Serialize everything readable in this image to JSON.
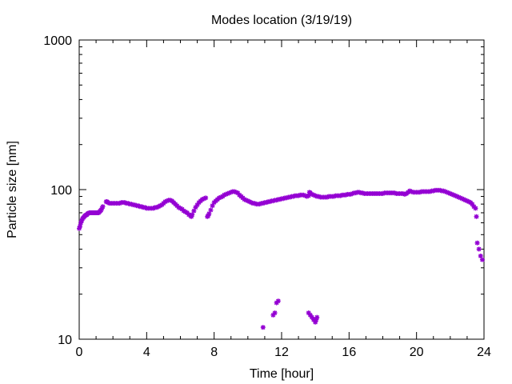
{
  "chart_data": {
    "type": "scatter",
    "title": "Modes location (3/19/19)",
    "xlabel": "Time [hour]",
    "ylabel": "Particle size [nm]",
    "xlim": [
      0,
      24
    ],
    "ylim": [
      10,
      1000
    ],
    "yscale": "log",
    "xticks": [
      0,
      4,
      8,
      12,
      16,
      20,
      24
    ],
    "yticks": [
      10,
      100,
      1000
    ],
    "grid": false,
    "marker_color": "#9400d3",
    "series": [
      {
        "points": [
          [
            0.0,
            55
          ],
          [
            0.05,
            57
          ],
          [
            0.1,
            60
          ],
          [
            0.15,
            62
          ],
          [
            0.2,
            64
          ],
          [
            0.25,
            65
          ],
          [
            0.3,
            66
          ],
          [
            0.35,
            67
          ],
          [
            0.4,
            67.5
          ],
          [
            0.45,
            68
          ],
          [
            0.5,
            69
          ],
          [
            0.55,
            69.5
          ],
          [
            0.6,
            70
          ],
          [
            0.65,
            70
          ],
          [
            0.7,
            70
          ],
          [
            0.75,
            70
          ],
          [
            0.8,
            70
          ],
          [
            0.85,
            70
          ],
          [
            0.9,
            70
          ],
          [
            0.95,
            70
          ],
          [
            1.0,
            70
          ],
          [
            1.05,
            70
          ],
          [
            1.1,
            70
          ],
          [
            1.15,
            70
          ],
          [
            1.2,
            71
          ],
          [
            1.25,
            72
          ],
          [
            1.3,
            73
          ],
          [
            1.35,
            75
          ],
          [
            1.4,
            77
          ],
          [
            1.6,
            83
          ],
          [
            1.65,
            83
          ],
          [
            1.7,
            82
          ],
          [
            1.8,
            81
          ],
          [
            1.9,
            81
          ],
          [
            2.0,
            81
          ],
          [
            2.1,
            81
          ],
          [
            2.2,
            81
          ],
          [
            2.3,
            81
          ],
          [
            2.4,
            81
          ],
          [
            2.5,
            82
          ],
          [
            2.6,
            82
          ],
          [
            2.7,
            82
          ],
          [
            2.8,
            81
          ],
          [
            2.9,
            81
          ],
          [
            3.0,
            80
          ],
          [
            3.1,
            80
          ],
          [
            3.2,
            79
          ],
          [
            3.3,
            79
          ],
          [
            3.4,
            78
          ],
          [
            3.5,
            78
          ],
          [
            3.6,
            77
          ],
          [
            3.7,
            77
          ],
          [
            3.8,
            76
          ],
          [
            3.9,
            76
          ],
          [
            4.0,
            75
          ],
          [
            4.1,
            75
          ],
          [
            4.2,
            75
          ],
          [
            4.3,
            75
          ],
          [
            4.4,
            75
          ],
          [
            4.5,
            76
          ],
          [
            4.6,
            76
          ],
          [
            4.7,
            77
          ],
          [
            4.8,
            78
          ],
          [
            4.9,
            79
          ],
          [
            5.0,
            81
          ],
          [
            5.1,
            83
          ],
          [
            5.2,
            84
          ],
          [
            5.3,
            85
          ],
          [
            5.4,
            85
          ],
          [
            5.5,
            84
          ],
          [
            5.6,
            82
          ],
          [
            5.7,
            80
          ],
          [
            5.8,
            78
          ],
          [
            5.9,
            76
          ],
          [
            6.0,
            75
          ],
          [
            6.1,
            74
          ],
          [
            6.2,
            72
          ],
          [
            6.3,
            71
          ],
          [
            6.4,
            70
          ],
          [
            6.5,
            68
          ],
          [
            6.6,
            67
          ],
          [
            6.65,
            66
          ],
          [
            6.7,
            68
          ],
          [
            6.8,
            72
          ],
          [
            6.9,
            76
          ],
          [
            7.0,
            79
          ],
          [
            7.1,
            82
          ],
          [
            7.2,
            84
          ],
          [
            7.3,
            86
          ],
          [
            7.4,
            87
          ],
          [
            7.5,
            88
          ],
          [
            7.6,
            66
          ],
          [
            7.65,
            67
          ],
          [
            7.7,
            69
          ],
          [
            7.8,
            73
          ],
          [
            7.9,
            78
          ],
          [
            8.0,
            82
          ],
          [
            8.1,
            84
          ],
          [
            8.2,
            86
          ],
          [
            8.3,
            88
          ],
          [
            8.4,
            89
          ],
          [
            8.5,
            90
          ],
          [
            8.6,
            92
          ],
          [
            8.7,
            93
          ],
          [
            8.8,
            94
          ],
          [
            8.9,
            95
          ],
          [
            9.0,
            96
          ],
          [
            9.1,
            97
          ],
          [
            9.2,
            97
          ],
          [
            9.3,
            96
          ],
          [
            9.4,
            95
          ],
          [
            9.5,
            92
          ],
          [
            9.6,
            90
          ],
          [
            9.7,
            88
          ],
          [
            9.8,
            86
          ],
          [
            9.9,
            85
          ],
          [
            10.0,
            84
          ],
          [
            10.1,
            83
          ],
          [
            10.2,
            82
          ],
          [
            10.3,
            81
          ],
          [
            10.4,
            81
          ],
          [
            10.5,
            80
          ],
          [
            10.6,
            80
          ],
          [
            10.7,
            80
          ],
          [
            10.8,
            81
          ],
          [
            10.9,
            81
          ],
          [
            11.0,
            82
          ],
          [
            11.1,
            82
          ],
          [
            11.2,
            83
          ],
          [
            11.3,
            83
          ],
          [
            11.4,
            84
          ],
          [
            11.5,
            84
          ],
          [
            11.6,
            85
          ],
          [
            11.7,
            85
          ],
          [
            11.8,
            86
          ],
          [
            11.9,
            86
          ],
          [
            12.0,
            87
          ],
          [
            12.1,
            87
          ],
          [
            12.2,
            88
          ],
          [
            12.3,
            88
          ],
          [
            12.4,
            89
          ],
          [
            12.5,
            89
          ],
          [
            12.6,
            90
          ],
          [
            12.7,
            90
          ],
          [
            12.8,
            91
          ],
          [
            12.9,
            91
          ],
          [
            13.0,
            91
          ],
          [
            13.1,
            92
          ],
          [
            13.2,
            92
          ],
          [
            13.3,
            92
          ],
          [
            13.4,
            91
          ],
          [
            13.5,
            90
          ],
          [
            13.6,
            91
          ],
          [
            13.65,
            96
          ],
          [
            13.7,
            95
          ],
          [
            13.8,
            93
          ],
          [
            13.9,
            92
          ],
          [
            14.0,
            91
          ],
          [
            14.1,
            90
          ],
          [
            14.2,
            90
          ],
          [
            14.3,
            89
          ],
          [
            14.4,
            89
          ],
          [
            14.5,
            89
          ],
          [
            14.6,
            89
          ],
          [
            14.7,
            89
          ],
          [
            14.8,
            90
          ],
          [
            14.9,
            90
          ],
          [
            15.0,
            90
          ],
          [
            15.1,
            90
          ],
          [
            15.2,
            91
          ],
          [
            15.3,
            91
          ],
          [
            15.4,
            91
          ],
          [
            15.5,
            91
          ],
          [
            15.6,
            92
          ],
          [
            15.7,
            92
          ],
          [
            15.8,
            92
          ],
          [
            15.9,
            93
          ],
          [
            16.0,
            93
          ],
          [
            16.1,
            93
          ],
          [
            16.2,
            94
          ],
          [
            16.3,
            95
          ],
          [
            16.4,
            95
          ],
          [
            16.5,
            96
          ],
          [
            16.6,
            96
          ],
          [
            16.7,
            95
          ],
          [
            16.8,
            95
          ],
          [
            16.9,
            94
          ],
          [
            17.0,
            94
          ],
          [
            17.1,
            94
          ],
          [
            17.2,
            94
          ],
          [
            17.3,
            94
          ],
          [
            17.4,
            94
          ],
          [
            17.5,
            94
          ],
          [
            17.6,
            94
          ],
          [
            17.7,
            94
          ],
          [
            17.8,
            94
          ],
          [
            17.9,
            94
          ],
          [
            18.0,
            94
          ],
          [
            18.1,
            95
          ],
          [
            18.2,
            95
          ],
          [
            18.3,
            95
          ],
          [
            18.4,
            95
          ],
          [
            18.5,
            95
          ],
          [
            18.6,
            95
          ],
          [
            18.7,
            95
          ],
          [
            18.8,
            94
          ],
          [
            18.9,
            94
          ],
          [
            19.0,
            94
          ],
          [
            19.1,
            94
          ],
          [
            19.2,
            94
          ],
          [
            19.3,
            93
          ],
          [
            19.4,
            94
          ],
          [
            19.5,
            96
          ],
          [
            19.6,
            98
          ],
          [
            19.7,
            97
          ],
          [
            19.8,
            96
          ],
          [
            19.9,
            96
          ],
          [
            20.0,
            96
          ],
          [
            20.1,
            96
          ],
          [
            20.2,
            96
          ],
          [
            20.3,
            97
          ],
          [
            20.4,
            97
          ],
          [
            20.5,
            97
          ],
          [
            20.6,
            97
          ],
          [
            20.7,
            97
          ],
          [
            20.8,
            97
          ],
          [
            20.9,
            98
          ],
          [
            21.0,
            98
          ],
          [
            21.1,
            99
          ],
          [
            21.2,
            99
          ],
          [
            21.3,
            99
          ],
          [
            21.4,
            99
          ],
          [
            21.5,
            98
          ],
          [
            21.6,
            98
          ],
          [
            21.7,
            97
          ],
          [
            21.8,
            96
          ],
          [
            21.9,
            95
          ],
          [
            22.0,
            94
          ],
          [
            22.1,
            93
          ],
          [
            22.2,
            92
          ],
          [
            22.3,
            91
          ],
          [
            22.4,
            90
          ],
          [
            22.5,
            89
          ],
          [
            22.6,
            88
          ],
          [
            22.7,
            87
          ],
          [
            22.8,
            86
          ],
          [
            22.9,
            85
          ],
          [
            23.0,
            84
          ],
          [
            23.1,
            83
          ],
          [
            23.2,
            82
          ],
          [
            23.3,
            80
          ],
          [
            23.4,
            77
          ],
          [
            23.5,
            75
          ],
          [
            23.55,
            66
          ],
          [
            23.6,
            44
          ],
          [
            23.7,
            40
          ],
          [
            23.8,
            36
          ],
          [
            23.9,
            34
          ],
          [
            10.9,
            12
          ],
          [
            11.5,
            14.5
          ],
          [
            11.6,
            15
          ],
          [
            11.7,
            17.5
          ],
          [
            11.8,
            18
          ],
          [
            13.6,
            15
          ],
          [
            13.7,
            14.5
          ],
          [
            13.8,
            14
          ],
          [
            13.9,
            13.5
          ],
          [
            14.0,
            13
          ],
          [
            14.05,
            13.5
          ],
          [
            14.1,
            14
          ]
        ]
      }
    ]
  }
}
